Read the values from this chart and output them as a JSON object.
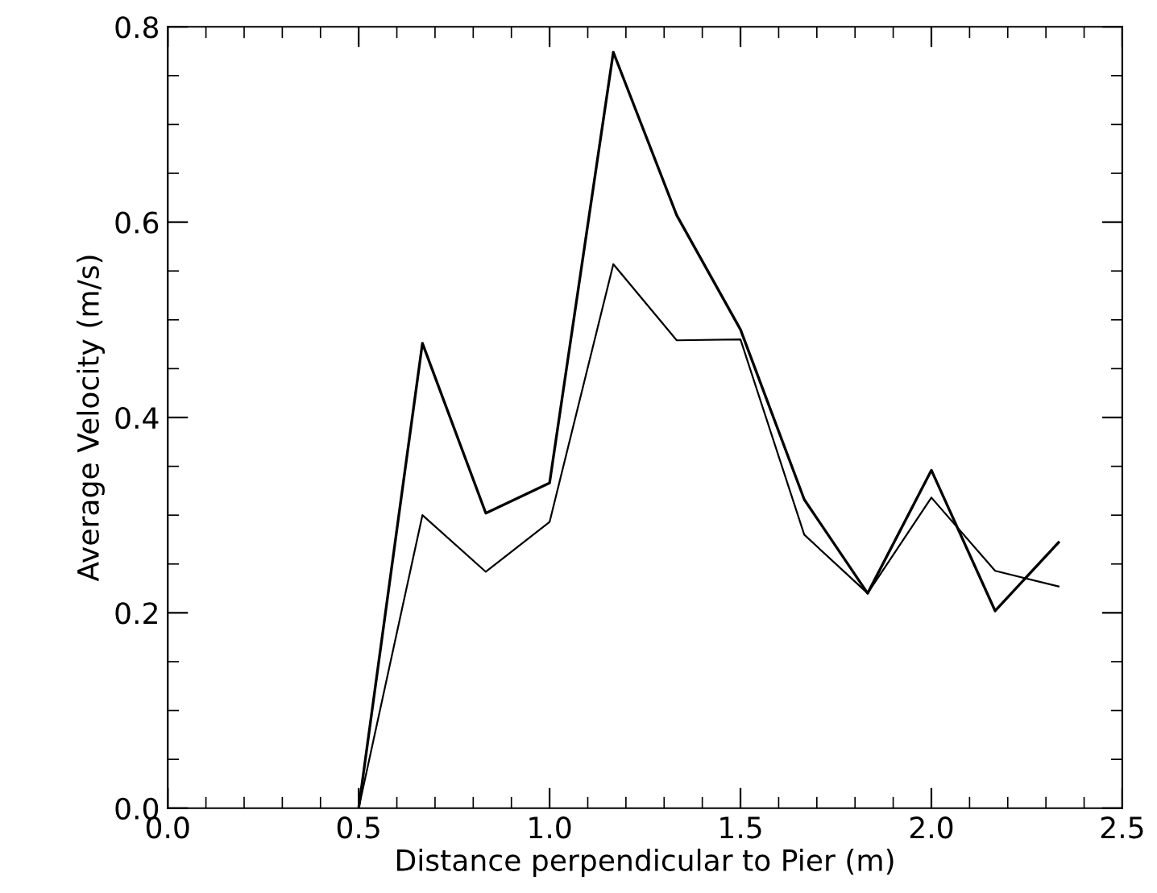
{
  "chart_data": {
    "type": "line",
    "xlabel": "Distance perpendicular to Pier (m)",
    "ylabel": "Average Velocity (m/s)",
    "xlim": [
      0,
      2.5
    ],
    "ylim": [
      0,
      0.8
    ],
    "xticks": [
      {
        "value": 0,
        "label": "0.0"
      },
      {
        "value": 0.5,
        "label": "0.5"
      },
      {
        "value": 1,
        "label": "1.0"
      },
      {
        "value": 1.5,
        "label": "1.5"
      },
      {
        "value": 2,
        "label": "2.0"
      },
      {
        "value": 2.5,
        "label": "2.5"
      }
    ],
    "yticks": [
      {
        "value": 0,
        "label": "0.0"
      },
      {
        "value": 0.2,
        "label": "0.2"
      },
      {
        "value": 0.4,
        "label": "0.4"
      },
      {
        "value": 0.6,
        "label": "0.6"
      },
      {
        "value": 0.8,
        "label": "0.8"
      }
    ],
    "x": [
      0.5,
      0.667,
      0.833,
      1.0,
      1.167,
      1.333,
      1.5,
      1.667,
      1.833,
      2.0,
      2.167,
      2.333
    ],
    "series": [
      {
        "color": "#000000",
        "values": [
          0,
          0.476,
          0.302,
          0.333,
          0.774,
          0.607,
          0.49,
          0.316,
          0.22,
          0.346,
          0.202,
          0.272
        ]
      },
      {
        "color": "#000000",
        "values": [
          0,
          0.3,
          0.242,
          0.293,
          0.557,
          0.479,
          0.48,
          0.28,
          0.22,
          0.318,
          0.243,
          0.227
        ]
      }
    ],
    "grid": false,
    "legend": false
  }
}
